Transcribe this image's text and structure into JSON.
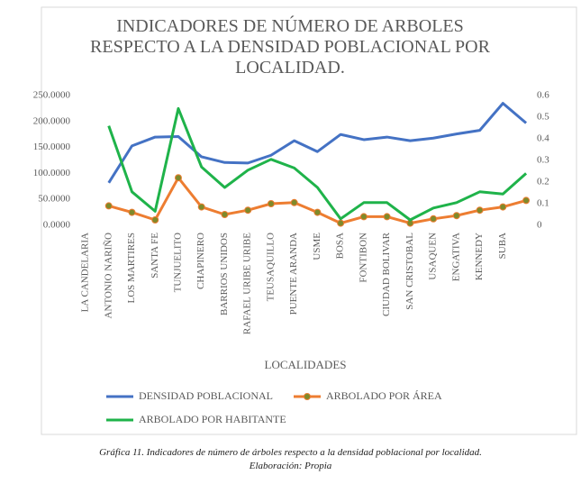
{
  "chart_data": {
    "type": "line",
    "title": "INDICADORES DE NÚMERO DE ARBOLES RESPECTO A LA DENSIDAD POBLACIONAL POR LOCALIDAD.",
    "x_label": "LOCALIDADES",
    "categories": [
      "LA CANDELARIA",
      "ANTONIO NARIÑO",
      "LOS MARTIRES",
      "SANTA FE",
      "TUNJUELITO",
      "CHAPINERO",
      "BARRIOS UNIDOS",
      "RAFAEL URIBE URIBE",
      "TEUSAQUILLO",
      "PUENTE ARANDA",
      "USME",
      "BOSA",
      "FONTIBON",
      "CIUDAD BOLIVAR",
      "SAN CRISTOBAL",
      "USAQUEN",
      "ENGATIVA",
      "KENNEDY",
      "SUBA",
      null
    ],
    "series": [
      {
        "name": "DENSIDAD POBLACIONAL",
        "color": "#4472c4",
        "axis": "y",
        "values": [
          null,
          82000,
          153000,
          170000,
          171000,
          132000,
          121000,
          120000,
          135000,
          163000,
          142000,
          175000,
          165000,
          170000,
          163000,
          168000,
          176000,
          183000,
          235000,
          197000
        ]
      },
      {
        "name": "ARBOLADO POR ÁREA",
        "color": "#ed7d31",
        "marker_color": "#7f8a2a",
        "axis": "y2",
        "values": [
          null,
          0.09,
          0.06,
          0.025,
          0.22,
          0.085,
          0.05,
          0.07,
          0.1,
          0.105,
          0.06,
          0.01,
          0.04,
          0.04,
          0.01,
          0.03,
          0.045,
          0.07,
          0.085,
          0.115
        ]
      },
      {
        "name": "ARBOLADO POR HABITANTE",
        "color": "#1fb34a",
        "axis": "y2",
        "values": [
          null,
          0.46,
          0.155,
          0.065,
          0.54,
          0.27,
          0.175,
          0.255,
          0.305,
          0.265,
          0.175,
          0.03,
          0.105,
          0.105,
          0.025,
          0.08,
          0.105,
          0.155,
          0.145,
          0.24
        ]
      }
    ],
    "ylim": [
      0,
      250000
    ],
    "yticks": [
      {
        "value": 0,
        "label": "0.0000"
      },
      {
        "value": 50000,
        "label": "50.0000"
      },
      {
        "value": 100000,
        "label": "100.0000"
      },
      {
        "value": 150000,
        "label": "150.0000"
      },
      {
        "value": 200000,
        "label": "200.0000"
      },
      {
        "value": 250000,
        "label": "250.0000"
      }
    ],
    "y2lim": [
      0,
      0.6
    ],
    "y2ticks": [
      0,
      0.1,
      0.2,
      0.3,
      0.4,
      0.5,
      0.6
    ],
    "grid": false,
    "legend": "bottom"
  },
  "caption": {
    "line1": "Gráfica 11. Indicadores de número de árboles respecto a la densidad poblacional por localidad.",
    "line2": "Elaboración: Propia"
  }
}
